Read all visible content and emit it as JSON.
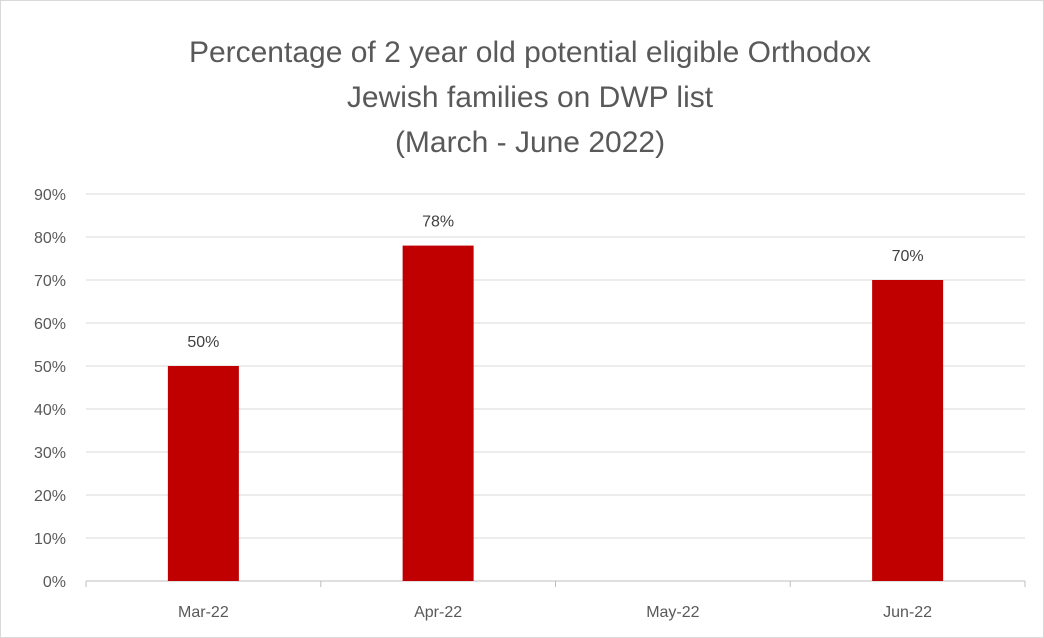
{
  "chart_data": {
    "type": "bar",
    "title_lines": [
      "Percentage of 2 year old potential eligible  Orthodox",
      "Jewish families on DWP list",
      "(March - June 2022)"
    ],
    "categories": [
      "Mar-22",
      "Apr-22",
      "May-22",
      "Jun-22"
    ],
    "values": [
      50,
      78,
      null,
      70
    ],
    "data_labels": [
      "50%",
      "78%",
      "",
      "70%"
    ],
    "ylim": [
      0,
      90
    ],
    "y_ticks": [
      "0%",
      "10%",
      "20%",
      "30%",
      "40%",
      "50%",
      "60%",
      "70%",
      "80%",
      "90%"
    ],
    "xlabel": "",
    "ylabel": "",
    "grid": true,
    "legend": "none",
    "bar_color": "#c00000"
  }
}
